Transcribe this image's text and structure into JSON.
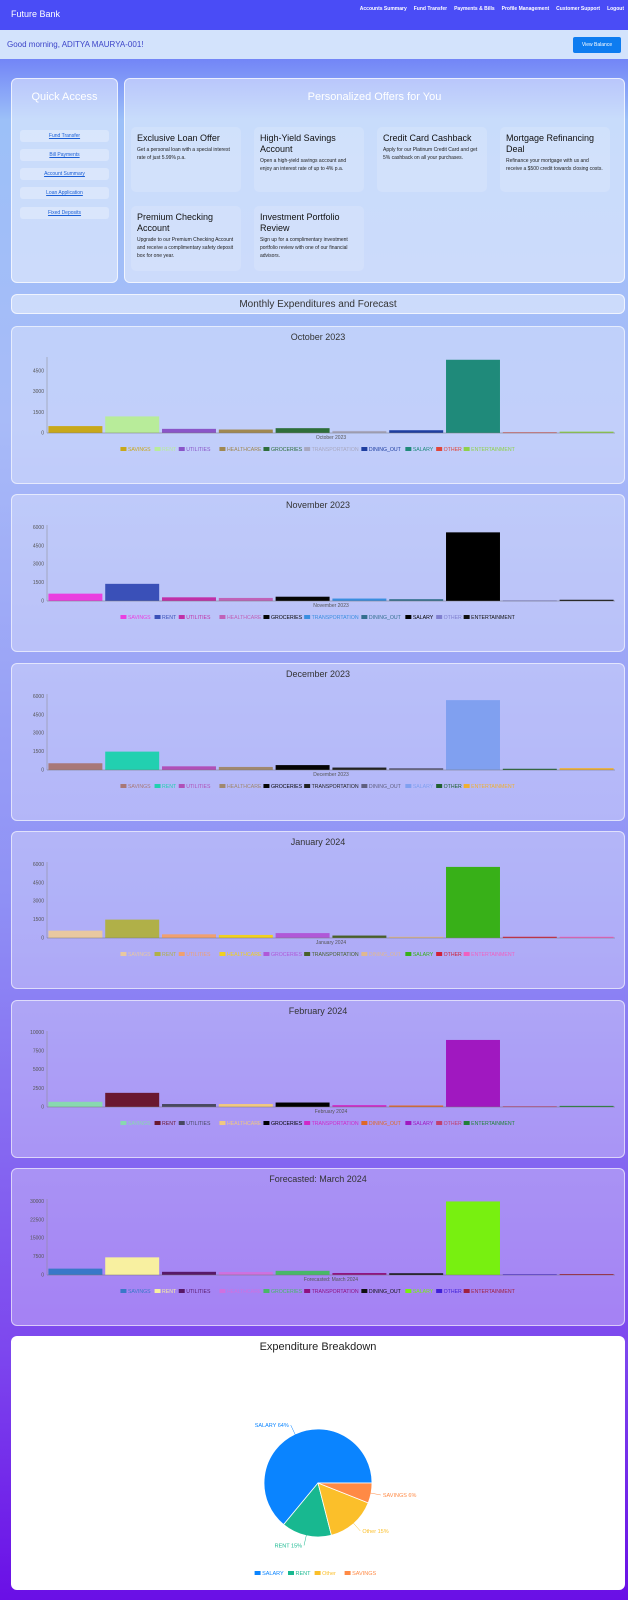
{
  "navbar": {
    "brand": "Future Bank",
    "links": [
      "Accounts Summary",
      "Fund Transfer",
      "Payments & Bills",
      "Profile Management",
      "Customer Support",
      "Logout"
    ]
  },
  "greeting": {
    "text": "Good morning, ADITYA MAURYA-001!",
    "button": "View Balance"
  },
  "quick_access": {
    "title": "Quick Access",
    "links": [
      "Fund Transfer",
      "Bill Payments",
      "Account Summary",
      "Loan Application",
      "Fixed Deposits"
    ]
  },
  "offers": {
    "title": "Personalized Offers for You",
    "items": [
      {
        "title": "Exclusive Loan Offer",
        "text": "Get a personal loan with a special interest rate of just 5.99% p.a."
      },
      {
        "title": "High-Yield Savings Account",
        "text": "Open a high-yield savings account and enjoy an interest rate of up to 4% p.a."
      },
      {
        "title": "Credit Card Cashback",
        "text": "Apply for our Platinum Credit Card and get 5% cashback on all your purchases."
      },
      {
        "title": "Mortgage Refinancing Deal",
        "text": "Refinance your mortgage with us and receive a $500 credit towards closing costs."
      },
      {
        "title": "Premium Checking Account",
        "text": "Upgrade to our Premium Checking Account and receive a complimentary safety deposit box for one year."
      },
      {
        "title": "Investment Portfolio Review",
        "text": "Sign up for a complimentary investment portfolio review with one of our financial advisors."
      }
    ]
  },
  "expenditures_title": "Monthly Expenditures and Forecast",
  "categories": [
    "SAVINGS",
    "RENT",
    "UTILITIES",
    "HEALTHCARE",
    "GROCERIES",
    "TRANSPORTATION",
    "DINING_OUT",
    "SALARY",
    "OTHER",
    "ENTERTAINMENT"
  ],
  "chart_data": [
    {
      "type": "bar",
      "title": "October 2023",
      "xlabel": "October 2023",
      "yticks": [
        0,
        1500,
        3000,
        4500
      ],
      "ylim": [
        0,
        5500
      ],
      "categories": [
        "SAVINGS",
        "RENT",
        "UTILITIES",
        "HEALTHCARE",
        "GROCERIES",
        "TRANSPORTATION",
        "DINING_OUT",
        "SALARY",
        "OTHER",
        "ENTERTAINMENT"
      ],
      "values": [
        500,
        1200,
        300,
        250,
        350,
        150,
        200,
        5300,
        50,
        100
      ],
      "colors": [
        "#c8a81a",
        "#b8ec9a",
        "#8a55c8",
        "#a08850",
        "#2e6e3a",
        "#a8a8c0",
        "#1e3ea0",
        "#1f8a7a",
        "#e0463a",
        "#8fd14a"
      ]
    },
    {
      "type": "bar",
      "title": "November 2023",
      "xlabel": "November 2023",
      "yticks": [
        0,
        1500,
        3000,
        4500,
        6000
      ],
      "ylim": [
        0,
        6200
      ],
      "categories": [
        "SAVINGS",
        "RENT",
        "UTILITIES",
        "HEALTHCARE",
        "GROCERIES",
        "TRANSPORTATION",
        "DINING_OUT",
        "SALARY",
        "OTHER",
        "ENTERTAINMENT"
      ],
      "values": [
        600,
        1400,
        300,
        250,
        350,
        200,
        150,
        5600,
        50,
        100
      ],
      "colors": [
        "#ea3fe0",
        "#3a50b8",
        "#c030a8",
        "#c062b8",
        "#050505",
        "#3a8ee0",
        "#357090",
        "#000000",
        "#8080d0",
        "#101010"
      ]
    },
    {
      "type": "bar",
      "title": "December 2023",
      "xlabel": "December 2023",
      "yticks": [
        0,
        1500,
        3000,
        4500,
        6000
      ],
      "ylim": [
        0,
        6200
      ],
      "categories": [
        "SAVINGS",
        "RENT",
        "UTILITIES",
        "HEALTHCARE",
        "GROCERIES",
        "TRANSPORTATION",
        "DINING_OUT",
        "SALARY",
        "OTHER",
        "ENTERTAINMENT"
      ],
      "values": [
        550,
        1500,
        300,
        250,
        400,
        200,
        150,
        5700,
        100,
        150
      ],
      "colors": [
        "#a87878",
        "#22d0b0",
        "#b050b8",
        "#a08870",
        "#050505",
        "#222222",
        "#606080",
        "#80a0f0",
        "#206030",
        "#f0b030"
      ]
    },
    {
      "type": "bar",
      "title": "January 2024",
      "xlabel": "January 2024",
      "yticks": [
        0,
        1500,
        3000,
        4500,
        6000
      ],
      "ylim": [
        0,
        6200
      ],
      "categories": [
        "SAVINGS",
        "RENT",
        "UTILITIES",
        "HEALTHCARE",
        "GROCERIES",
        "TRANSPORTATION",
        "DINING_OUT",
        "SALARY",
        "OTHER",
        "ENTERTAINMENT"
      ],
      "values": [
        600,
        1500,
        300,
        250,
        400,
        200,
        100,
        5800,
        100,
        100
      ],
      "colors": [
        "#e8c8a0",
        "#b0b048",
        "#f0a070",
        "#f0d020",
        "#b058d8",
        "#486028",
        "#e0b890",
        "#38b018",
        "#d02038",
        "#f060c0"
      ]
    },
    {
      "type": "bar",
      "title": "February 2024",
      "xlabel": "February 2024",
      "yticks": [
        0,
        2500,
        5000,
        7500,
        10000
      ],
      "ylim": [
        0,
        10200
      ],
      "categories": [
        "SAVINGS",
        "RENT",
        "UTILITIES",
        "HEALTHCARE",
        "GROCERIES",
        "TRANSPORTATION",
        "DINING_OUT",
        "SALARY",
        "OTHER",
        "ENTERTAINMENT"
      ],
      "values": [
        700,
        1900,
        400,
        400,
        600,
        250,
        200,
        9000,
        100,
        150
      ],
      "colors": [
        "#88d8b0",
        "#6a1830",
        "#484860",
        "#f0c880",
        "#000000",
        "#d028c8",
        "#e06828",
        "#a018c0",
        "#c04070",
        "#208038"
      ]
    },
    {
      "type": "bar",
      "title": "Forecasted: March 2024",
      "xlabel": "Forecasted: March 2024",
      "yticks": [
        0,
        7500,
        15000,
        22500,
        30000
      ],
      "ylim": [
        0,
        31000
      ],
      "categories": [
        "SAVINGS",
        "RENT",
        "UTILITIES",
        "HEALTHCARE",
        "GROCERIES",
        "TRANSPORTATION",
        "DINING_OUT",
        "SALARY",
        "OTHER",
        "ENTERTAINMENT"
      ],
      "values": [
        2600,
        7200,
        1300,
        1200,
        1700,
        800,
        700,
        30000,
        300,
        400
      ],
      "colors": [
        "#3878c8",
        "#f8f0a0",
        "#581868",
        "#d070e0",
        "#48b868",
        "#901080",
        "#101010",
        "#78f010",
        "#4020d8",
        "#a02040"
      ]
    },
    {
      "type": "pie",
      "title": "Expenditure Breakdown",
      "slices": [
        {
          "label": "SALARY",
          "value": 64,
          "display": "SALARY 64%",
          "color": "#0a84ff"
        },
        {
          "label": "RENT",
          "value": 15,
          "display": "RENT 15%",
          "color": "#18b890"
        },
        {
          "label": "Other",
          "value": 15,
          "display": "Other 15%",
          "color": "#fbbf2a"
        },
        {
          "label": "SAVINGS",
          "value": 6,
          "display": "SAVINGS 6%",
          "color": "#ff8a45"
        }
      ]
    }
  ]
}
